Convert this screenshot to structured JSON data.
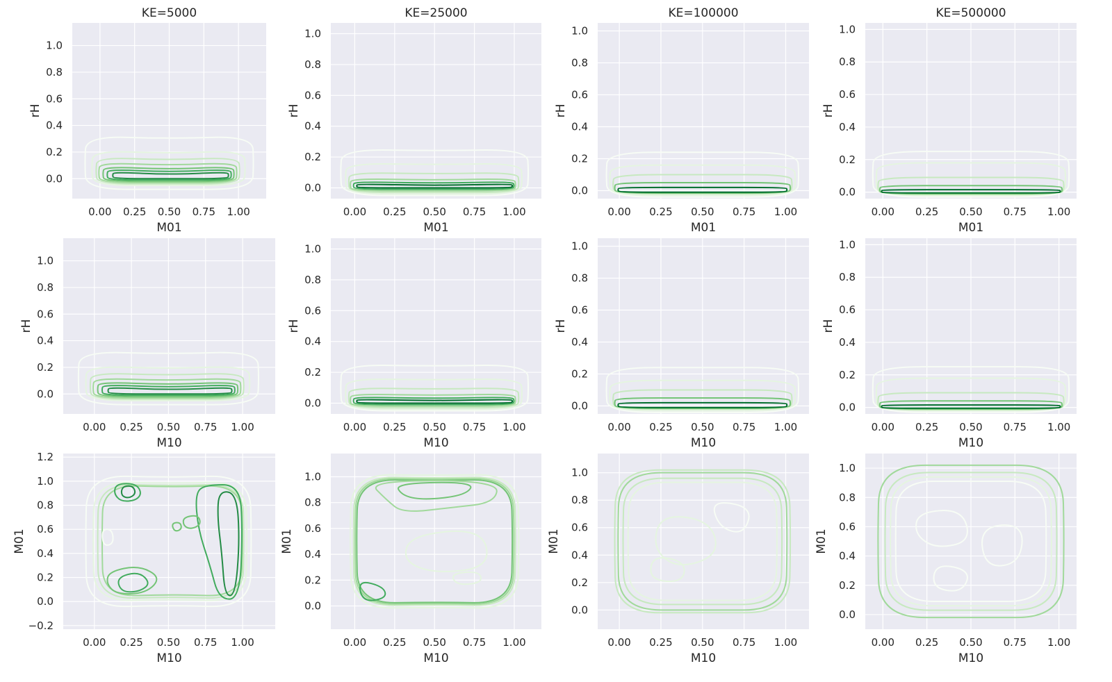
{
  "chart_data": [
    {
      "type": "kde-contour",
      "title": "KE=5000",
      "xlabel": "M01",
      "ylabel": "rH",
      "xlim": [
        -0.2,
        1.2
      ],
      "ylim": [
        -0.15,
        1.17
      ],
      "xticks": [
        "0.00",
        "0.25",
        "0.50",
        "0.75",
        "1.00"
      ],
      "yticks": [
        "0.0",
        "0.2",
        "0.4",
        "0.6",
        "0.8",
        "1.0"
      ],
      "grid": true,
      "palette": "Greens"
    },
    {
      "type": "kde-contour",
      "title": "KE=25000",
      "xlabel": "M01",
      "ylabel": "rH",
      "xlim": [
        -0.15,
        1.17
      ],
      "ylim": [
        -0.07,
        1.07
      ],
      "xticks": [
        "0.00",
        "0.25",
        "0.50",
        "0.75",
        "1.00"
      ],
      "yticks": [
        "0.0",
        "0.2",
        "0.4",
        "0.6",
        "0.8",
        "1.0"
      ],
      "grid": true,
      "palette": "Greens"
    },
    {
      "type": "kde-contour",
      "title": "KE=100000",
      "xlabel": "M01",
      "ylabel": "rH",
      "xlim": [
        -0.13,
        1.14
      ],
      "ylim": [
        -0.05,
        1.05
      ],
      "xticks": [
        "0.00",
        "0.25",
        "0.50",
        "0.75",
        "1.00"
      ],
      "yticks": [
        "0.0",
        "0.2",
        "0.4",
        "0.6",
        "0.8",
        "1.0"
      ],
      "grid": true,
      "palette": "Greens"
    },
    {
      "type": "kde-contour",
      "title": "KE=500000",
      "xlabel": "M01",
      "ylabel": "rH",
      "xlim": [
        -0.1,
        1.1
      ],
      "ylim": [
        -0.04,
        1.04
      ],
      "xticks": [
        "0.00",
        "0.25",
        "0.50",
        "0.75",
        "1.00"
      ],
      "yticks": [
        "0.0",
        "0.2",
        "0.4",
        "0.6",
        "0.8",
        "1.0"
      ],
      "grid": true,
      "palette": "Greens"
    },
    {
      "type": "kde-contour",
      "title": "",
      "xlabel": "M10",
      "ylabel": "rH",
      "xlim": [
        -0.21,
        1.22
      ],
      "ylim": [
        -0.15,
        1.17
      ],
      "xticks": [
        "0.00",
        "0.25",
        "0.50",
        "0.75",
        "1.00"
      ],
      "yticks": [
        "0.0",
        "0.2",
        "0.4",
        "0.6",
        "0.8",
        "1.0"
      ],
      "grid": true,
      "palette": "Greens"
    },
    {
      "type": "kde-contour",
      "title": "",
      "xlabel": "M10",
      "ylabel": "rH",
      "xlim": [
        -0.15,
        1.17
      ],
      "ylim": [
        -0.07,
        1.07
      ],
      "xticks": [
        "0.00",
        "0.25",
        "0.50",
        "0.75",
        "1.00"
      ],
      "yticks": [
        "0.0",
        "0.2",
        "0.4",
        "0.6",
        "0.8",
        "1.0"
      ],
      "grid": true,
      "palette": "Greens"
    },
    {
      "type": "kde-contour",
      "title": "",
      "xlabel": "M10",
      "ylabel": "rH",
      "xlim": [
        -0.13,
        1.14
      ],
      "ylim": [
        -0.05,
        1.05
      ],
      "xticks": [
        "0.00",
        "0.25",
        "0.50",
        "0.75",
        "1.00"
      ],
      "yticks": [
        "0.0",
        "0.2",
        "0.4",
        "0.6",
        "0.8",
        "1.0"
      ],
      "grid": true,
      "palette": "Greens"
    },
    {
      "type": "kde-contour",
      "title": "",
      "xlabel": "M10",
      "ylabel": "rH",
      "xlim": [
        -0.1,
        1.1
      ],
      "ylim": [
        -0.04,
        1.04
      ],
      "xticks": [
        "0.00",
        "0.25",
        "0.50",
        "0.75",
        "1.00"
      ],
      "yticks": [
        "0.0",
        "0.2",
        "0.4",
        "0.6",
        "0.8",
        "1.0"
      ],
      "grid": true,
      "palette": "Greens"
    },
    {
      "type": "kde-contour",
      "title": "",
      "xlabel": "M10",
      "ylabel": "M01",
      "xlim": [
        -0.21,
        1.22
      ],
      "ylim": [
        -0.23,
        1.23
      ],
      "xticks": [
        "0.00",
        "0.25",
        "0.50",
        "0.75",
        "1.00"
      ],
      "yticks": [
        "−0.2",
        "0.0",
        "0.2",
        "0.4",
        "0.6",
        "0.8",
        "1.0",
        "1.2"
      ],
      "grid": true,
      "palette": "Greens"
    },
    {
      "type": "kde-contour",
      "title": "",
      "xlabel": "M10",
      "ylabel": "M01",
      "xlim": [
        -0.15,
        1.17
      ],
      "ylim": [
        -0.18,
        1.18
      ],
      "xticks": [
        "0.00",
        "0.25",
        "0.50",
        "0.75",
        "1.00"
      ],
      "yticks": [
        "0.0",
        "0.2",
        "0.4",
        "0.6",
        "0.8",
        "1.0"
      ],
      "grid": true,
      "palette": "Greens"
    },
    {
      "type": "kde-contour",
      "title": "",
      "xlabel": "M10",
      "ylabel": "M01",
      "xlim": [
        -0.13,
        1.14
      ],
      "ylim": [
        -0.14,
        1.14
      ],
      "xticks": [
        "0.00",
        "0.25",
        "0.50",
        "0.75",
        "1.00"
      ],
      "yticks": [
        "0.0",
        "0.2",
        "0.4",
        "0.6",
        "0.8",
        "1.0"
      ],
      "grid": true,
      "palette": "Greens"
    },
    {
      "type": "kde-contour",
      "title": "",
      "xlabel": "M10",
      "ylabel": "M01",
      "xlim": [
        -0.1,
        1.1
      ],
      "ylim": [
        -0.1,
        1.1
      ],
      "xticks": [
        "0.00",
        "0.25",
        "0.50",
        "0.75",
        "1.00"
      ],
      "yticks": [
        "0.0",
        "0.2",
        "0.4",
        "0.6",
        "0.8",
        "1.0"
      ],
      "grid": true,
      "palette": "Greens"
    }
  ],
  "colors": {
    "plot_bg": "#eaeaf2",
    "grid": "#ffffff",
    "text": "#262626",
    "levels": [
      "#f7fcf5",
      "#e5f5e0",
      "#c7e9c0",
      "#a1d99b",
      "#74c476",
      "#41ab5d",
      "#238b45",
      "#006d2c"
    ]
  }
}
